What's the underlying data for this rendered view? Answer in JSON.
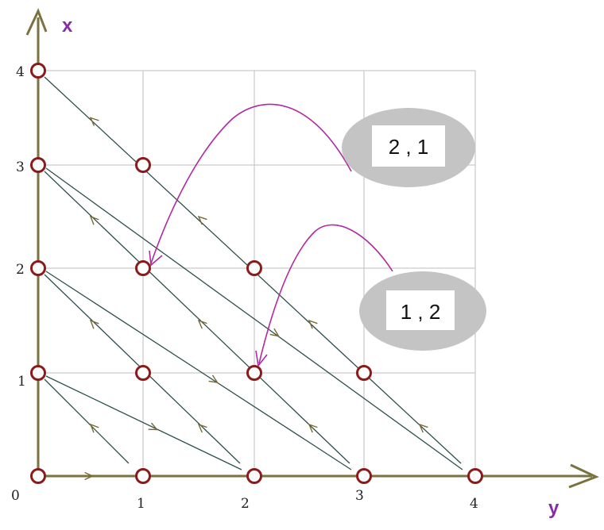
{
  "axes": {
    "vertical_label": "x",
    "horizontal_label": "y",
    "vertical_ticks": [
      "0",
      "1",
      "2",
      "3",
      "4"
    ],
    "horizontal_ticks": [
      "1",
      "2",
      "3",
      "4"
    ]
  },
  "points": [
    {
      "x": 0,
      "y": 0
    },
    {
      "x": 0,
      "y": 1
    },
    {
      "x": 0,
      "y": 2
    },
    {
      "x": 0,
      "y": 3
    },
    {
      "x": 0,
      "y": 4
    },
    {
      "x": 1,
      "y": 0
    },
    {
      "x": 1,
      "y": 1
    },
    {
      "x": 1,
      "y": 2
    },
    {
      "x": 1,
      "y": 3
    },
    {
      "x": 2,
      "y": 0
    },
    {
      "x": 2,
      "y": 1
    },
    {
      "x": 2,
      "y": 2
    },
    {
      "x": 3,
      "y": 0
    },
    {
      "x": 3,
      "y": 1
    },
    {
      "x": 4,
      "y": 0
    }
  ],
  "callouts": [
    {
      "text": "2 , 1",
      "target": {
        "x": 2,
        "y": 1
      }
    },
    {
      "text": "1 , 2",
      "target": {
        "x": 1,
        "y": 2
      }
    }
  ],
  "colors": {
    "axis": "#7a7240",
    "node_stroke": "#8b1a1a",
    "callout_curve": "#b02aa0",
    "axis_label": "#8a2aa8",
    "bubble": "#c4c4c4"
  }
}
